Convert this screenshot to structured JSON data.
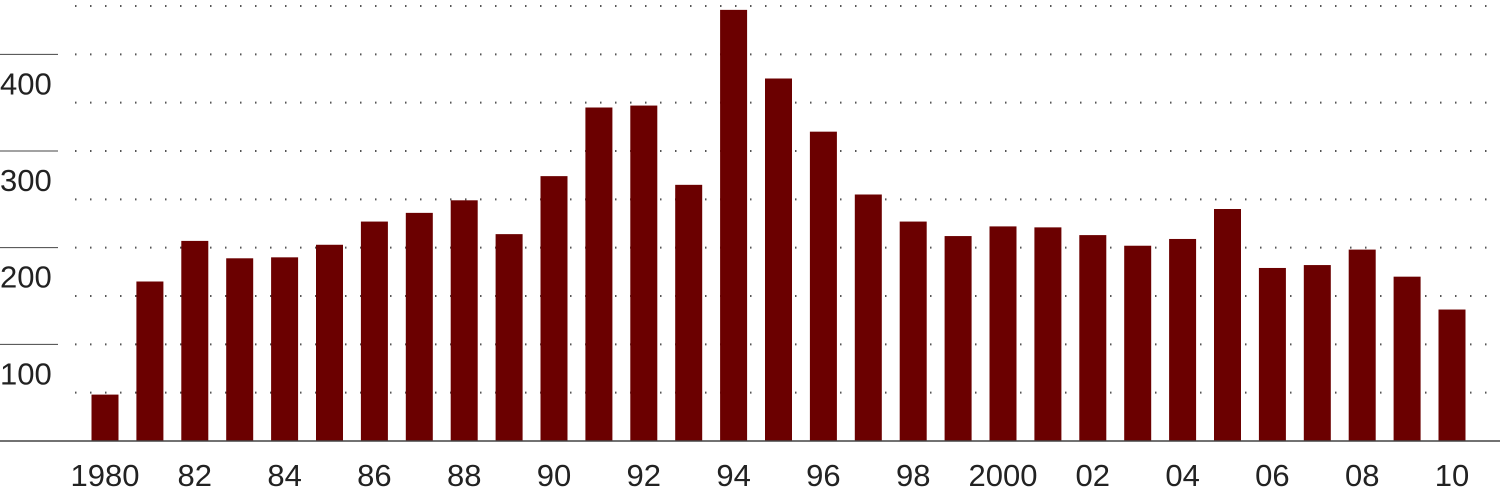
{
  "chart_data": {
    "type": "bar",
    "categories": [
      "1980",
      null,
      "82",
      null,
      "84",
      null,
      "86",
      null,
      "88",
      null,
      "90",
      null,
      "92",
      null,
      "94",
      null,
      "96",
      null,
      "98",
      null,
      "2000",
      null,
      "02",
      null,
      "04",
      null,
      "06",
      null,
      "08",
      null,
      "10"
    ],
    "values": [
      48,
      165,
      207,
      189,
      190,
      203,
      227,
      236,
      249,
      214,
      274,
      345,
      347,
      265,
      446,
      375,
      320,
      255,
      227,
      212,
      222,
      221,
      213,
      202,
      209,
      240,
      179,
      182,
      198,
      170,
      136
    ],
    "color": "#6b0000",
    "ylim": [
      0,
      450
    ],
    "yticks": [
      100,
      200,
      300,
      400
    ],
    "grid_yticks": [
      50,
      100,
      150,
      200,
      250,
      300,
      350,
      400,
      450
    ],
    "grid": true
  }
}
